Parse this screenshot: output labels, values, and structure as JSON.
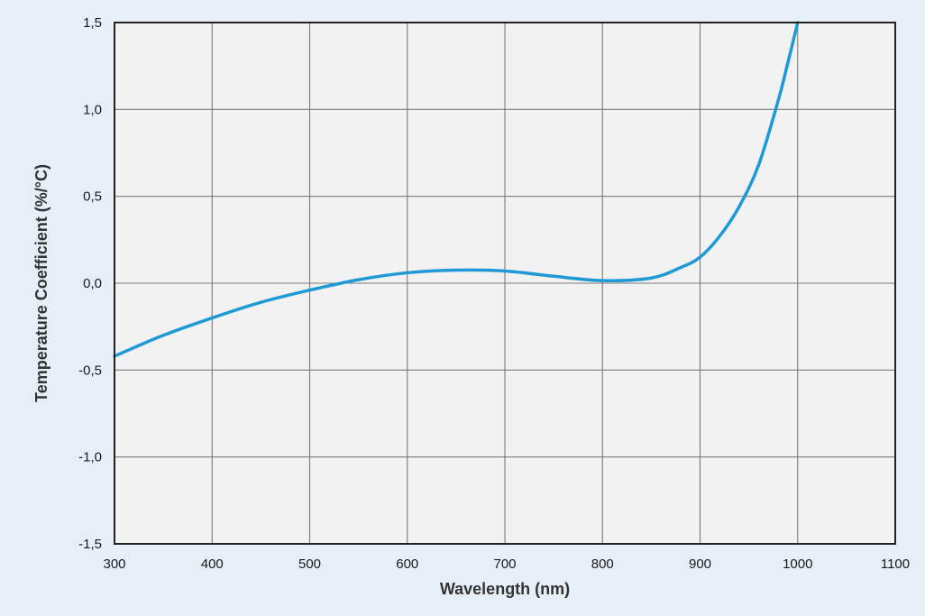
{
  "chart_data": {
    "type": "line",
    "title": "",
    "xlabel": "Wavelength (nm)",
    "ylabel": "Temperature Coefficient (%/°C)",
    "xlim": [
      300,
      1100
    ],
    "ylim": [
      -1.5,
      1.5
    ],
    "xticks": [
      300,
      400,
      500,
      600,
      700,
      800,
      900,
      1000,
      1100
    ],
    "yticks": [
      -1.5,
      -1.0,
      -0.5,
      0.0,
      0.5,
      1.0,
      1.5
    ],
    "xtick_labels": [
      "300",
      "400",
      "500",
      "600",
      "700",
      "800",
      "900",
      "1000",
      "1100"
    ],
    "ytick_labels": [
      "-1,5",
      "-1,0",
      "-0,5",
      "0,0",
      "0,5",
      "1,0",
      "1,5"
    ],
    "grid": true,
    "legend": "none",
    "series": [
      {
        "color": "#1f9ad6",
        "x": [
          300,
          350,
          400,
          450,
          500,
          550,
          600,
          650,
          700,
          750,
          800,
          850,
          880,
          900,
          920,
          940,
          960,
          980,
          990,
          1000
        ],
        "y": [
          -0.42,
          -0.3,
          -0.2,
          -0.11,
          -0.04,
          0.02,
          0.06,
          0.075,
          0.07,
          0.04,
          0.015,
          0.03,
          0.09,
          0.15,
          0.27,
          0.44,
          0.68,
          1.05,
          1.27,
          1.5
        ]
      }
    ],
    "colors": {
      "page_background": "#e6eef8",
      "plot_background": "#f2f2f2",
      "grid": "#7a7a7a",
      "axis": "#222222",
      "line": "#1f9ad6"
    }
  }
}
